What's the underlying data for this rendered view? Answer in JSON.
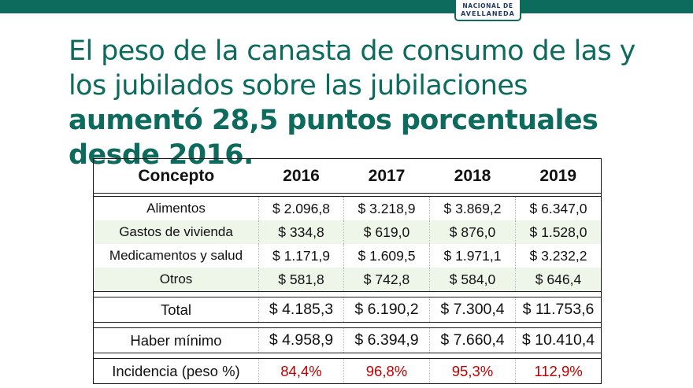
{
  "header": {
    "logo_line1": "NACIONAL DE",
    "logo_line2": "AVELLANEDA",
    "accent_color": "#0d6b5e"
  },
  "headline": {
    "normal": "El peso de la canasta de consumo de las y los jubilados sobre las jubilaciones ",
    "bold": "aumentó 28,5 puntos porcentuales desde 2016."
  },
  "table": {
    "columns": [
      "Concepto",
      "2016",
      "2017",
      "2018",
      "2019"
    ],
    "items": [
      {
        "label": "Alimentos",
        "values": [
          "$ 2.096,8",
          "$ 3.218,9",
          "$ 3.869,2",
          "$ 6.347,0"
        ]
      },
      {
        "label": "Gastos de vivienda",
        "values": [
          "$ 334,8",
          "$ 619,0",
          "$ 876,0",
          "$ 1.528,0"
        ]
      },
      {
        "label": "Medicamentos y salud",
        "values": [
          "$ 1.171,9",
          "$ 1.609,5",
          "$ 1.971,1",
          "$ 3.232,2"
        ]
      },
      {
        "label": "Otros",
        "values": [
          "$ 581,8",
          "$ 742,8",
          "$ 584,0",
          "$ 646,4"
        ]
      }
    ],
    "total": {
      "label": "Total",
      "values": [
        "$ 4.185,3",
        "$ 6.190,2",
        "$ 7.300,4",
        "$ 11.753,6"
      ]
    },
    "haber": {
      "label": "Haber mínimo",
      "values": [
        "$ 4.958,9",
        "$ 6.394,9",
        "$ 7.660,4",
        "$ 10.410,4"
      ]
    },
    "incidencia": {
      "label": "Incidencia (peso %)",
      "values": [
        "84,4%",
        "96,8%",
        "95,3%",
        "112,9%"
      ]
    },
    "highlight_color": "#c00000"
  }
}
